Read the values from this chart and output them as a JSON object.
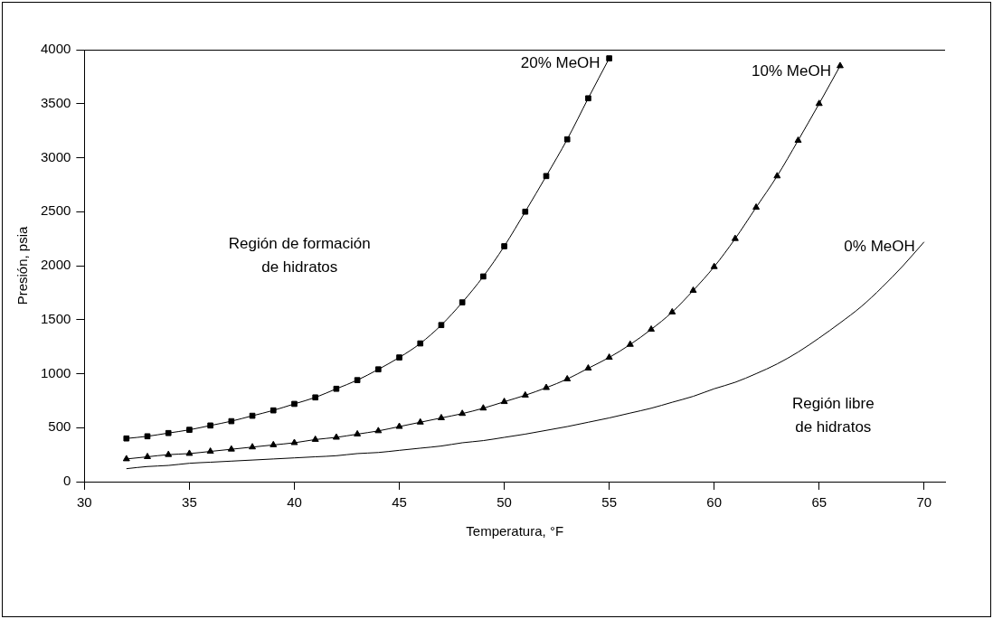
{
  "chart_data": {
    "type": "line",
    "xlabel": "Temperatura, °F",
    "ylabel": "Presión, psia",
    "xlim": [
      30,
      71
    ],
    "xticks": [
      30,
      35,
      40,
      45,
      50,
      55,
      60,
      65,
      70
    ],
    "ylim": [
      0,
      4000
    ],
    "yticks": [
      0,
      500,
      1000,
      1500,
      2000,
      2500,
      3000,
      3500,
      4000
    ],
    "grid": false,
    "legend": false,
    "line_style": "solid",
    "annotations": [
      "Región de formación de hidratos",
      "Región libre de hidratos"
    ],
    "series": [
      {
        "name": "20% MeOH",
        "color": "#000000",
        "marker": "square",
        "x": [
          32,
          33,
          34,
          35,
          36,
          37,
          38,
          39,
          40,
          41,
          42,
          43,
          44,
          45,
          46,
          47,
          48,
          49,
          50,
          51,
          52,
          53,
          54,
          55
        ],
        "values": [
          400,
          420,
          450,
          480,
          520,
          560,
          610,
          660,
          720,
          780,
          860,
          940,
          1040,
          1150,
          1280,
          1450,
          1660,
          1900,
          2180,
          2500,
          2830,
          3170,
          3550,
          3920
        ]
      },
      {
        "name": "10% MeOH",
        "color": "#000000",
        "marker": "triangle",
        "x": [
          32,
          33,
          34,
          35,
          36,
          37,
          38,
          39,
          40,
          41,
          42,
          43,
          44,
          45,
          46,
          47,
          48,
          49,
          50,
          51,
          52,
          53,
          54,
          55,
          56,
          57,
          58,
          59,
          60,
          61,
          62,
          63,
          64,
          65,
          66
        ],
        "values": [
          210,
          230,
          250,
          260,
          280,
          300,
          320,
          340,
          360,
          390,
          410,
          440,
          470,
          510,
          550,
          590,
          630,
          680,
          740,
          800,
          870,
          950,
          1050,
          1150,
          1270,
          1410,
          1570,
          1770,
          1990,
          2250,
          2540,
          2830,
          3160,
          3500,
          3850
        ]
      },
      {
        "name": "0% MeOH",
        "color": "#000000",
        "marker": "none",
        "x": [
          32,
          33,
          34,
          35,
          36,
          37,
          38,
          39,
          40,
          41,
          42,
          43,
          44,
          45,
          46,
          47,
          48,
          49,
          50,
          51,
          52,
          53,
          54,
          55,
          56,
          57,
          58,
          59,
          60,
          61,
          62,
          63,
          64,
          65,
          66,
          67,
          68,
          69,
          70
        ],
        "values": [
          120,
          140,
          150,
          170,
          180,
          190,
          200,
          210,
          220,
          230,
          240,
          260,
          270,
          290,
          310,
          330,
          360,
          380,
          410,
          440,
          475,
          510,
          550,
          590,
          635,
          680,
          735,
          790,
          860,
          920,
          1000,
          1090,
          1200,
          1330,
          1470,
          1620,
          1800,
          2000,
          2220
        ]
      }
    ]
  }
}
